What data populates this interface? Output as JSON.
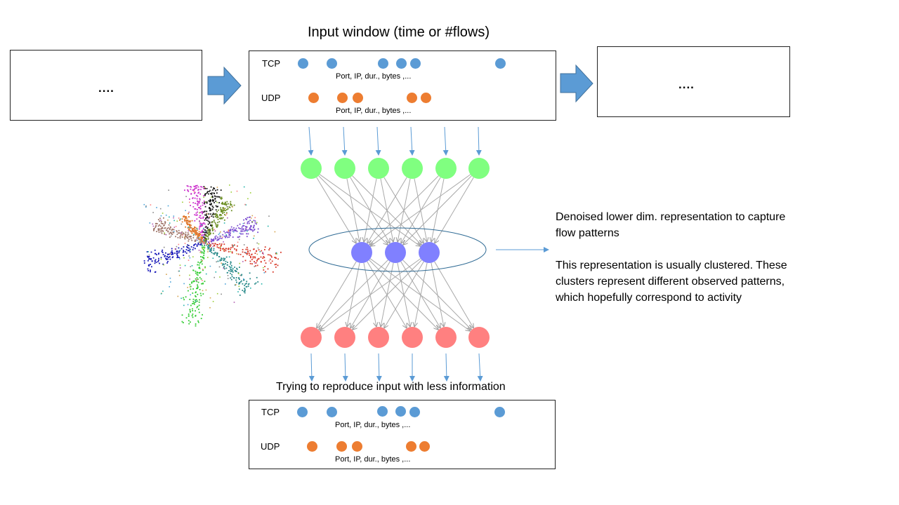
{
  "top_title": "Input window (time or #flows)",
  "bottom_title": "Trying to reproduce input with less information",
  "left_box_text": "....",
  "right_box_text": "....",
  "tcp_label": "TCP",
  "udp_label": "UDP",
  "meta_label": "Port, IP, dur., bytes ,...",
  "description": {
    "line1": "Denoised lower dim. representation to capture flow patterns",
    "line2": "This representation is usually clustered. These clusters represent different observed patterns, which hopefully correspond to activity"
  },
  "colors": {
    "tcp_dot": "#5B9BD5",
    "udp_dot": "#ED7D31",
    "input_node": "#80FF80",
    "hidden_node": "#8080FF",
    "output_node": "#FF8080",
    "arrow": "#5B9BD5"
  }
}
